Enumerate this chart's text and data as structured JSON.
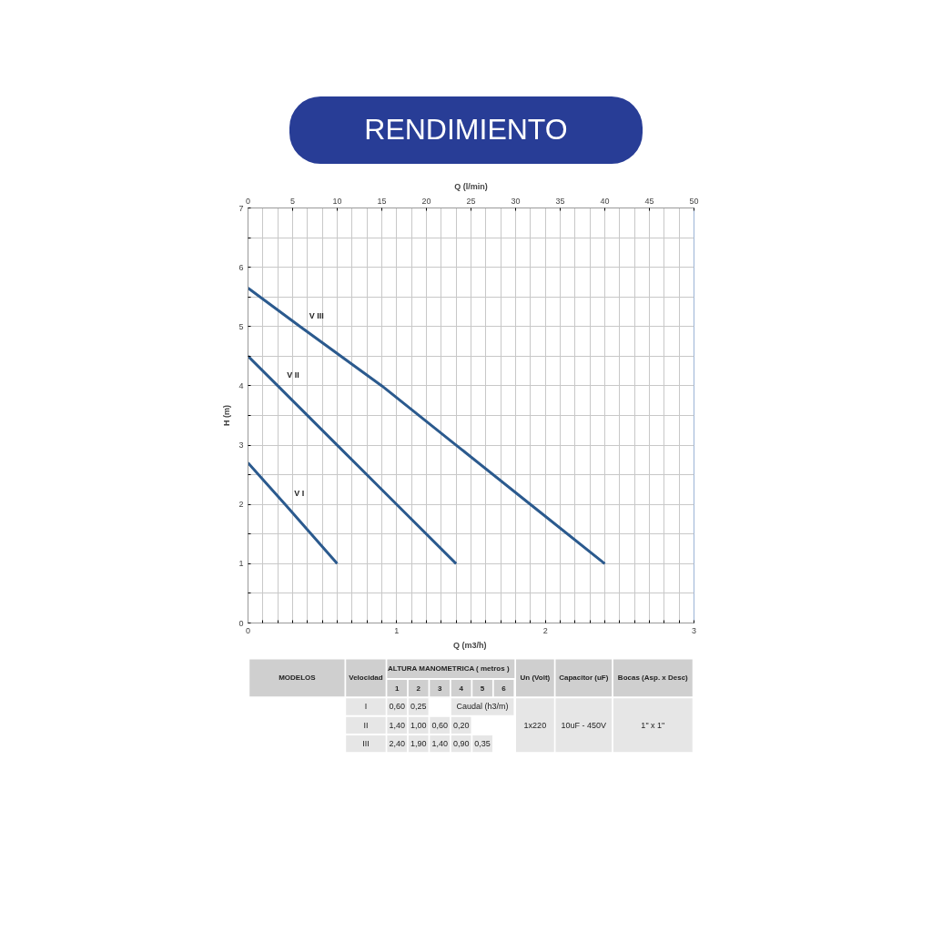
{
  "chart_data": {
    "type": "line",
    "title": "RENDIMIENTO",
    "xlabel": "Q  (m3/h)",
    "ylabel": "H (m)",
    "x2label": "Q (l/min)",
    "series": [
      {
        "name": "V III",
        "color": "#2b5a8e",
        "x": [
          0,
          0.35,
          0.9,
          1.4,
          1.9,
          2.4
        ],
        "values": [
          5.65,
          5,
          4,
          3,
          2,
          1
        ]
      },
      {
        "name": "V II",
        "color": "#2b5a8e",
        "x": [
          0,
          0.2,
          0.6,
          1.0,
          1.4
        ],
        "values": [
          4.5,
          4,
          3,
          2,
          1
        ]
      },
      {
        "name": "V I",
        "color": "#2b5a8e",
        "x": [
          0,
          0.25,
          0.6
        ],
        "values": [
          2.7,
          2,
          1
        ]
      }
    ],
    "xlim": [
      0,
      3
    ],
    "ylim": [
      0,
      7
    ],
    "x2lim": [
      0,
      50
    ],
    "xticks": [
      0,
      {
        "value": 0.1,
        "label": null
      },
      {
        "value": 0.2,
        "label": null
      },
      {
        "value": 0.3,
        "label": null
      },
      {
        "value": 0.4,
        "label": null
      },
      {
        "value": 0.5,
        "label": null
      },
      {
        "value": 0.6,
        "label": null
      },
      {
        "value": 0.7,
        "label": null
      },
      {
        "value": 0.8,
        "label": null
      },
      {
        "value": 0.9,
        "label": null
      },
      1,
      {
        "value": 1.1,
        "label": null
      },
      {
        "value": 1.2,
        "label": null
      },
      {
        "value": 1.3,
        "label": null
      },
      {
        "value": 1.4,
        "label": null
      },
      {
        "value": 1.5,
        "label": null
      },
      {
        "value": 1.6,
        "label": null
      },
      {
        "value": 1.7,
        "label": null
      },
      {
        "value": 1.8,
        "label": null
      },
      {
        "value": 1.9,
        "label": null
      },
      2,
      {
        "value": 2.1,
        "label": null
      },
      {
        "value": 2.2,
        "label": null
      },
      {
        "value": 2.3,
        "label": null
      },
      {
        "value": 2.4,
        "label": null
      },
      {
        "value": 2.5,
        "label": null
      },
      {
        "value": 2.6,
        "label": null
      },
      {
        "value": 2.7,
        "label": null
      },
      {
        "value": 2.8,
        "label": null
      },
      {
        "value": 2.9,
        "label": null
      },
      3
    ],
    "yticks": [
      0,
      {
        "value": 0.5,
        "label": null
      },
      1,
      {
        "value": 1.5,
        "label": null
      },
      2,
      {
        "value": 2.5,
        "label": null
      },
      3,
      {
        "value": 3.5,
        "label": null
      },
      4,
      {
        "value": 4.5,
        "label": null
      },
      5,
      {
        "value": 5.5,
        "label": null
      },
      6,
      {
        "value": 6.5,
        "label": null
      },
      7
    ],
    "x2ticks": [
      0,
      5,
      10,
      15,
      20,
      25,
      30,
      35,
      40,
      45,
      50
    ],
    "grid": true,
    "line_style": "solid",
    "marker": "none",
    "annotations": [
      "MODELOS",
      "Velocidad",
      "ALTURA  MANOMETRICA  ( metros )",
      "1",
      "2",
      "3",
      "4",
      "5",
      "6",
      "Un (Volt)",
      "Capacitor (uF)",
      "Bocas (Asp. x Desc)",
      "I",
      "II",
      "III",
      "0,60",
      "0,25",
      "Caudal (h3/m)",
      "1,40",
      "1,00",
      "0,60",
      "0,20",
      "2,40",
      "1,90",
      "1,40",
      "0,90",
      "0,35",
      "1x220",
      "10uF - 450V",
      "1\" x 1\""
    ]
  }
}
